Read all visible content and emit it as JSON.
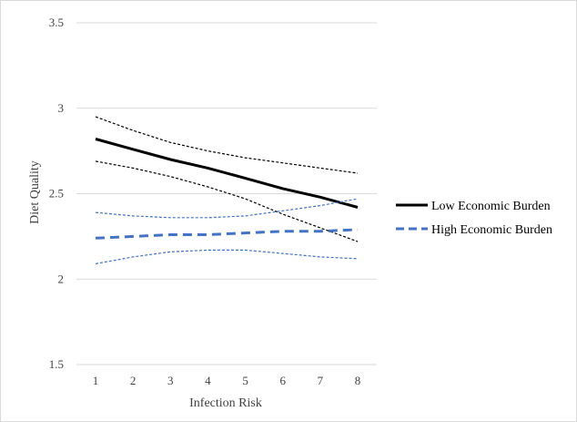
{
  "chart_data": {
    "type": "line",
    "title": "",
    "xlabel": "Infection Risk",
    "ylabel": "Diet Quality",
    "x": [
      1,
      2,
      3,
      4,
      5,
      6,
      7,
      8
    ],
    "x_ticks": [
      "1",
      "2",
      "3",
      "4",
      "5",
      "6",
      "7",
      "8"
    ],
    "ylim": [
      1.5,
      3.5
    ],
    "y_ticks": [
      "1.5",
      "2",
      "2.5",
      "3",
      "3.5"
    ],
    "grid": "horizontal",
    "legend_position": "right",
    "series": [
      {
        "name": "Low Economic Burden",
        "style": "solid",
        "color": "#000000",
        "values": [
          2.82,
          2.76,
          2.7,
          2.65,
          2.59,
          2.53,
          2.48,
          2.42
        ],
        "ci_upper": [
          2.95,
          2.87,
          2.8,
          2.75,
          2.71,
          2.68,
          2.65,
          2.62
        ],
        "ci_lower": [
          2.69,
          2.65,
          2.6,
          2.54,
          2.47,
          2.38,
          2.3,
          2.22
        ]
      },
      {
        "name": "High Economic Burden",
        "style": "dashed",
        "color": "#4472c4",
        "values": [
          2.24,
          2.25,
          2.26,
          2.26,
          2.27,
          2.28,
          2.28,
          2.29
        ],
        "ci_upper": [
          2.39,
          2.37,
          2.36,
          2.36,
          2.37,
          2.4,
          2.43,
          2.47
        ],
        "ci_lower": [
          2.09,
          2.13,
          2.16,
          2.17,
          2.17,
          2.15,
          2.13,
          2.12
        ]
      }
    ]
  }
}
